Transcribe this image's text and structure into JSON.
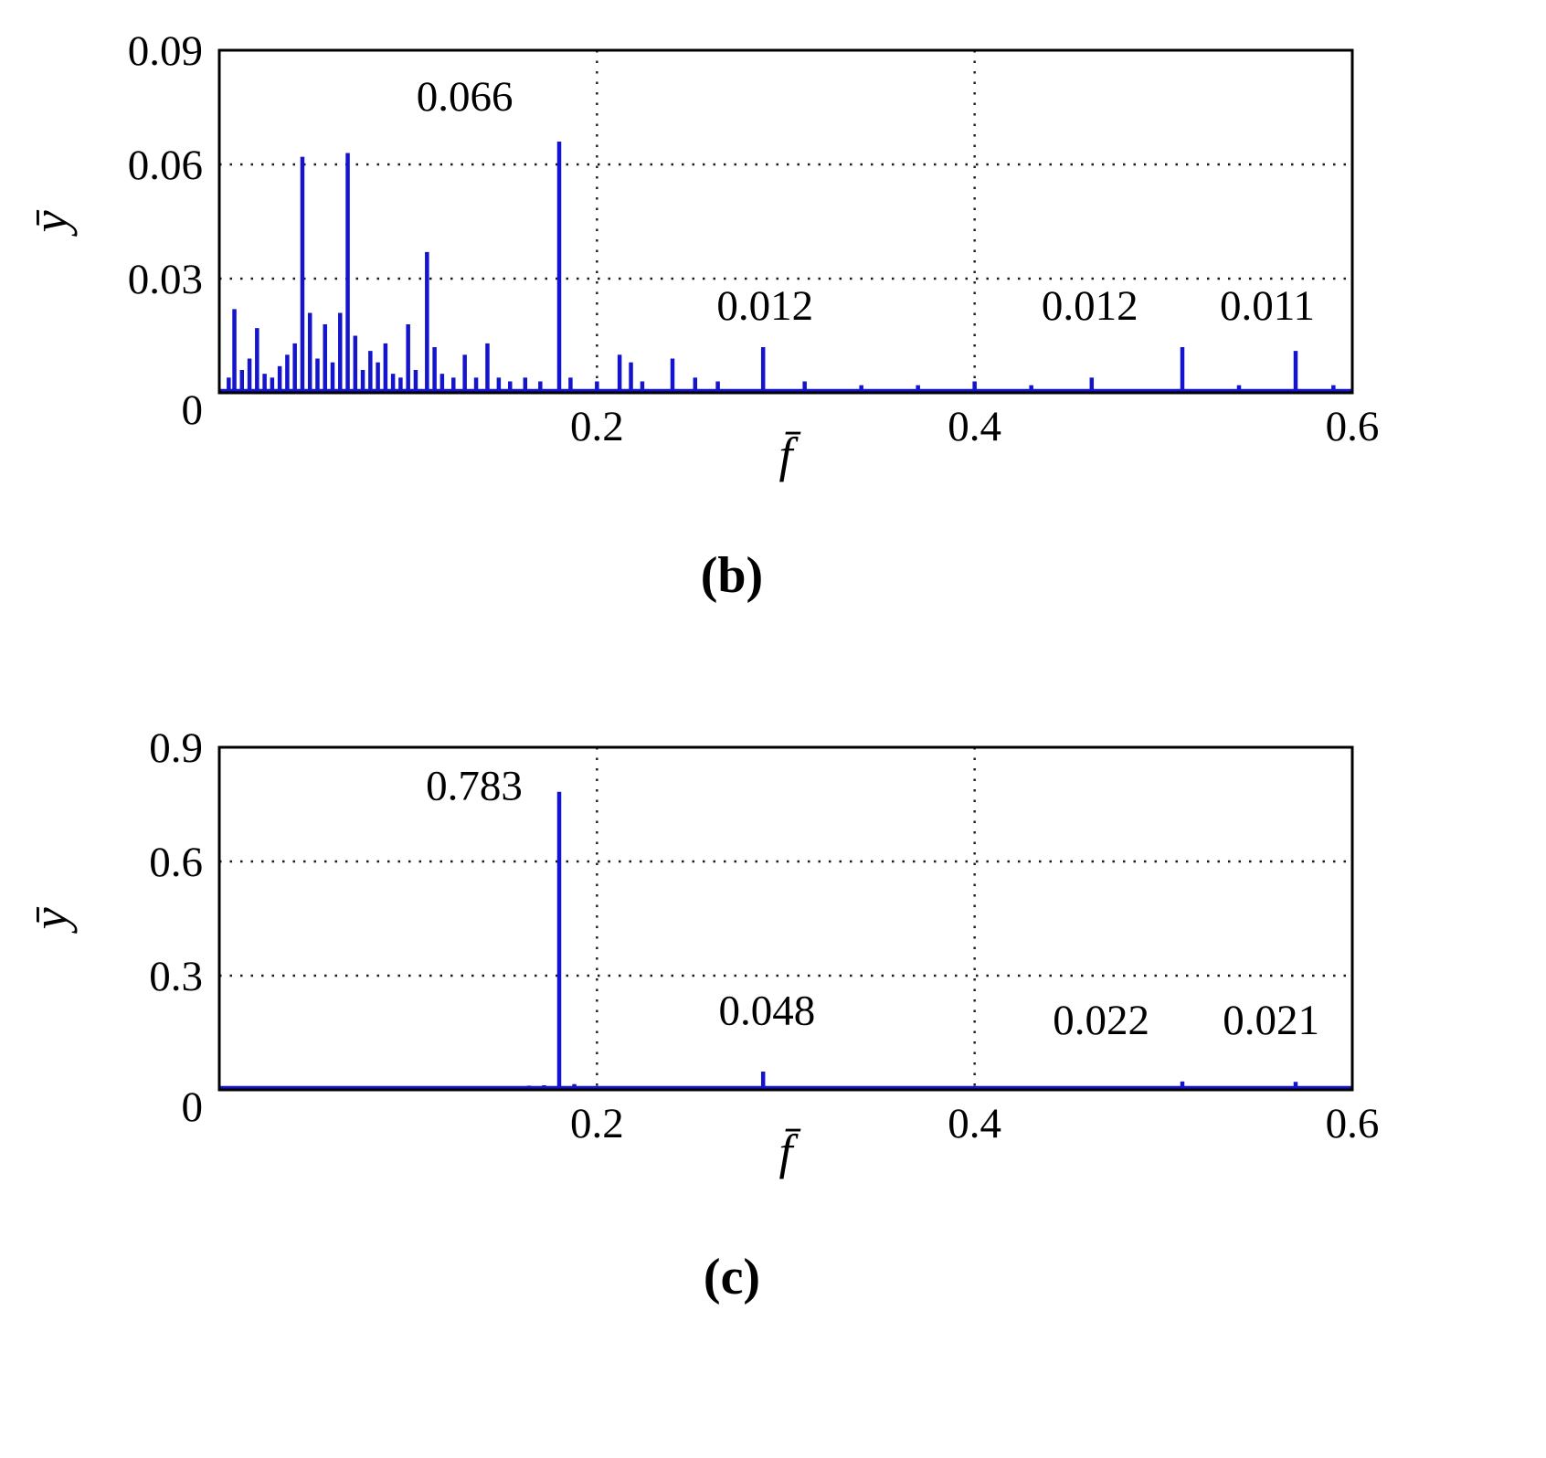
{
  "page": {
    "background": "#ffffff"
  },
  "chart_data": [
    {
      "type": "bar",
      "subtype": "frequency-spectrum-stems",
      "caption": "(b)",
      "xlabel": "f̄",
      "ylabel": "ȳ",
      "xlim": [
        0,
        0.6
      ],
      "ylim": [
        0,
        0.09
      ],
      "xticks": [
        0,
        0.2,
        0.4,
        0.6
      ],
      "yticks": [
        0,
        0.03,
        0.06,
        0.09
      ],
      "grid": true,
      "legend": "none",
      "line_color": "#1414cc",
      "spikes": [
        [
          0.005,
          0.004
        ],
        [
          0.008,
          0.022
        ],
        [
          0.012,
          0.006
        ],
        [
          0.016,
          0.009
        ],
        [
          0.02,
          0.017
        ],
        [
          0.024,
          0.005
        ],
        [
          0.028,
          0.004
        ],
        [
          0.032,
          0.007
        ],
        [
          0.036,
          0.01
        ],
        [
          0.04,
          0.013
        ],
        [
          0.044,
          0.062
        ],
        [
          0.048,
          0.021
        ],
        [
          0.052,
          0.009
        ],
        [
          0.056,
          0.018
        ],
        [
          0.06,
          0.008
        ],
        [
          0.064,
          0.021
        ],
        [
          0.068,
          0.063
        ],
        [
          0.072,
          0.015
        ],
        [
          0.076,
          0.006
        ],
        [
          0.08,
          0.011
        ],
        [
          0.084,
          0.008
        ],
        [
          0.088,
          0.013
        ],
        [
          0.092,
          0.005
        ],
        [
          0.096,
          0.004
        ],
        [
          0.1,
          0.018
        ],
        [
          0.104,
          0.006
        ],
        [
          0.11,
          0.037
        ],
        [
          0.114,
          0.012
        ],
        [
          0.118,
          0.005
        ],
        [
          0.124,
          0.004
        ],
        [
          0.13,
          0.01
        ],
        [
          0.136,
          0.004
        ],
        [
          0.142,
          0.013
        ],
        [
          0.148,
          0.004
        ],
        [
          0.154,
          0.003
        ],
        [
          0.162,
          0.004
        ],
        [
          0.17,
          0.003
        ],
        [
          0.18,
          0.066
        ],
        [
          0.186,
          0.004
        ],
        [
          0.2,
          0.003
        ],
        [
          0.212,
          0.01
        ],
        [
          0.218,
          0.008
        ],
        [
          0.224,
          0.003
        ],
        [
          0.24,
          0.009
        ],
        [
          0.252,
          0.004
        ],
        [
          0.264,
          0.003
        ],
        [
          0.288,
          0.012
        ],
        [
          0.31,
          0.003
        ],
        [
          0.34,
          0.002
        ],
        [
          0.37,
          0.002
        ],
        [
          0.4,
          0.003
        ],
        [
          0.43,
          0.002
        ],
        [
          0.462,
          0.004
        ],
        [
          0.51,
          0.012
        ],
        [
          0.54,
          0.002
        ],
        [
          0.57,
          0.011
        ],
        [
          0.59,
          0.002
        ]
      ],
      "annotations": [
        {
          "text": "0.066",
          "x": 0.13,
          "y": 0.078
        },
        {
          "text": "0.012",
          "x": 0.289,
          "y": 0.023
        },
        {
          "text": "0.012",
          "x": 0.461,
          "y": 0.023
        },
        {
          "text": "0.011",
          "x": 0.555,
          "y": 0.023
        }
      ]
    },
    {
      "type": "bar",
      "subtype": "frequency-spectrum-stems",
      "caption": "(c)",
      "xlabel": "f̄",
      "ylabel": "ȳ",
      "xlim": [
        0,
        0.6
      ],
      "ylim": [
        0,
        0.9
      ],
      "xticks": [
        0,
        0.2,
        0.4,
        0.6
      ],
      "yticks": [
        0,
        0.3,
        0.6,
        0.9
      ],
      "grid": true,
      "legend": "none",
      "line_color": "#1414cc",
      "spikes": [
        [
          0.148,
          0.008
        ],
        [
          0.156,
          0.009
        ],
        [
          0.164,
          0.011
        ],
        [
          0.172,
          0.012
        ],
        [
          0.18,
          0.783
        ],
        [
          0.188,
          0.015
        ],
        [
          0.288,
          0.048
        ],
        [
          0.51,
          0.022
        ],
        [
          0.57,
          0.021
        ]
      ],
      "annotations": [
        {
          "text": "0.783",
          "x": 0.135,
          "y": 0.8
        },
        {
          "text": "0.048",
          "x": 0.29,
          "y": 0.21
        },
        {
          "text": "0.022",
          "x": 0.467,
          "y": 0.185
        },
        {
          "text": "0.021",
          "x": 0.557,
          "y": 0.185
        }
      ]
    }
  ]
}
